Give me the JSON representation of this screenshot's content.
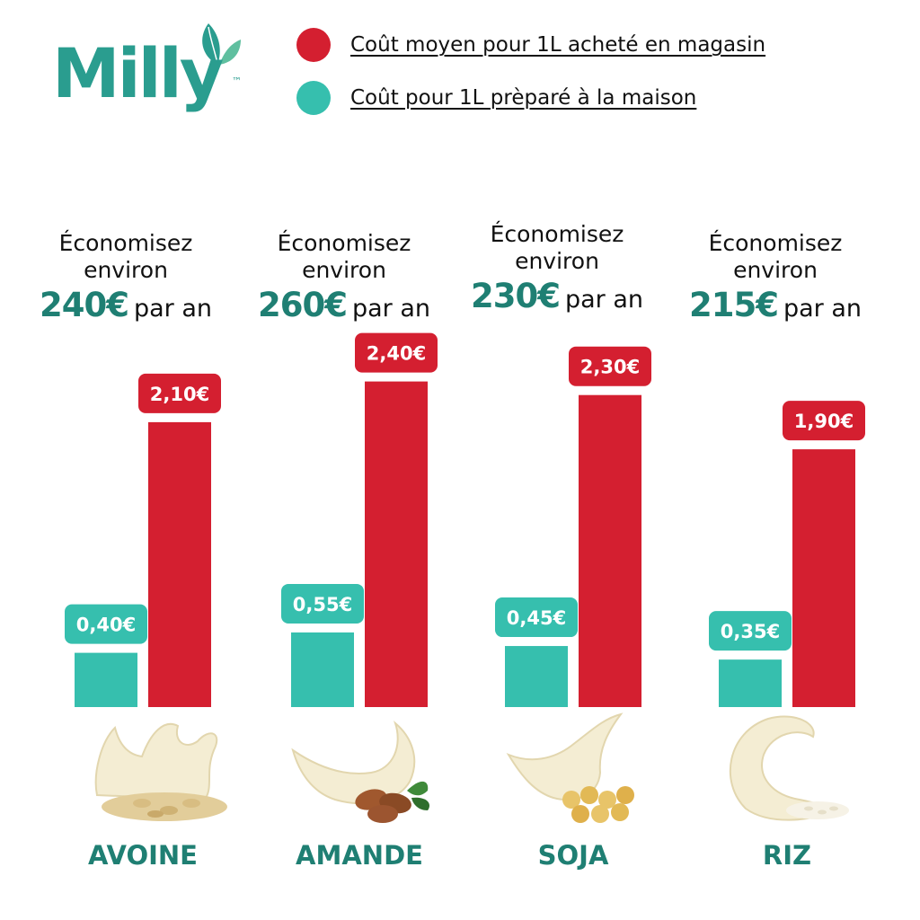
{
  "brand": {
    "name": "Milly",
    "trademark": "™",
    "color": "#2a9d8f"
  },
  "legend": {
    "items": [
      {
        "label": "Coût moyen pour 1L acheté en magasin",
        "color": "#d41f30"
      },
      {
        "label": "Coût pour 1L prèparé à la maison",
        "color": "#36bfae"
      }
    ]
  },
  "colors": {
    "store": "#d41f30",
    "home": "#36bfae",
    "heading": "#1f7f73",
    "category": "#1f7f73",
    "text": "#111111"
  },
  "savings": [
    {
      "line1": "Économisez",
      "line2": "environ",
      "amount": "240€",
      "suffix": "par an"
    },
    {
      "line1": "Économisez",
      "line2": "environ",
      "amount": "260€",
      "suffix": "par an"
    },
    {
      "line1": "Économisez",
      "line2": "environ",
      "amount": "230€",
      "suffix": "par an"
    },
    {
      "line1": "Économisez",
      "line2": "environ",
      "amount": "215€",
      "suffix": "par an"
    }
  ],
  "chart_data": {
    "type": "bar",
    "categories": [
      "AVOINE",
      "AMANDE",
      "SOJA",
      "RIZ"
    ],
    "series": [
      {
        "name": "Coût pour 1L prèparé à la maison",
        "values": [
          0.4,
          0.55,
          0.45,
          0.35
        ],
        "labels": [
          "0,40€",
          "0,55€",
          "0,45€",
          "0,35€"
        ]
      },
      {
        "name": "Coût moyen pour 1L acheté en magasin",
        "values": [
          2.1,
          2.4,
          2.3,
          1.9
        ],
        "labels": [
          "2,10€",
          "2,40€",
          "2,30€",
          "1,90€"
        ]
      }
    ],
    "title": "",
    "xlabel": "",
    "ylabel": "",
    "grid": false,
    "legend_position": "top-right"
  },
  "illustrations": [
    {
      "icon": "oat-milk-splash-icon"
    },
    {
      "icon": "almond-milk-splash-icon"
    },
    {
      "icon": "soy-milk-splash-icon"
    },
    {
      "icon": "rice-milk-wave-icon"
    }
  ]
}
